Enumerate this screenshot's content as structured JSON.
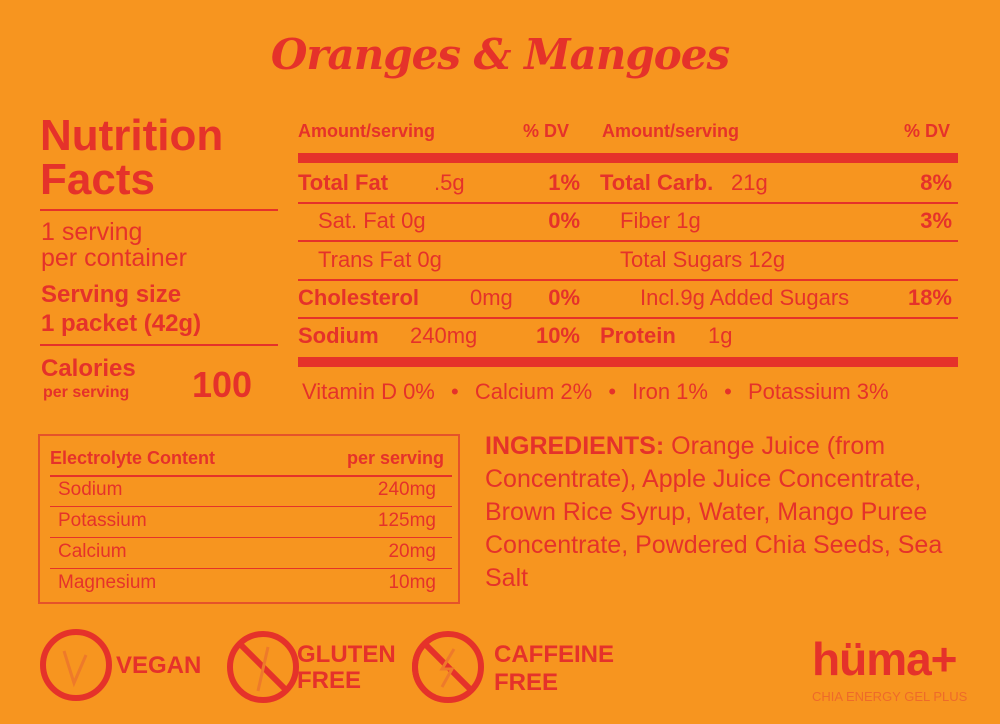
{
  "title": "Oranges & Mangoes",
  "facts": {
    "heading": "Nutrition Facts",
    "servings": "1 serving",
    "servings2": "per container",
    "serving_size_label": "Serving size",
    "serving_size": "1 packet (42g)",
    "calories_label": "Calories",
    "calories_sub": "per serving",
    "calories": "100"
  },
  "table": {
    "hdr_amount": "Amount/serving",
    "hdr_dv": "% DV",
    "left": [
      {
        "name": "Total Fat",
        "amount": ".5g",
        "dv": "1%",
        "bold": true
      },
      {
        "name": "Sat. Fat 0g",
        "amount": "",
        "dv": "0%",
        "bold": false
      },
      {
        "name": "Trans Fat 0g",
        "amount": "",
        "dv": "",
        "bold": false
      },
      {
        "name": "Cholesterol",
        "amount": "0mg",
        "dv": "0%",
        "bold": true
      },
      {
        "name": "Sodium",
        "amount": "240mg",
        "dv": "10%",
        "bold": true
      }
    ],
    "right": [
      {
        "name": "Total Carb.",
        "amount": "21g",
        "dv": "8%",
        "bold": true
      },
      {
        "name": "Fiber 1g",
        "amount": "",
        "dv": "3%",
        "bold": false
      },
      {
        "name": "Total Sugars 12g",
        "amount": "",
        "dv": "",
        "bold": false
      },
      {
        "name": "Incl.9g Added Sugars",
        "amount": "",
        "dv": "18%",
        "bold": false
      },
      {
        "name": "Protein",
        "amount": "1g",
        "dv": "",
        "bold": true
      }
    ],
    "vitamins": [
      "Vitamin D 0%",
      "Calcium 2%",
      "Iron 1%",
      "Potassium 3%"
    ],
    "bullet": "•"
  },
  "electrolytes": {
    "header": "Electrolyte Content",
    "header_right": "per serving",
    "rows": [
      {
        "name": "Sodium",
        "value": "240mg"
      },
      {
        "name": "Potassium",
        "value": "125mg"
      },
      {
        "name": "Calcium",
        "value": "20mg"
      },
      {
        "name": "Magnesium",
        "value": "10mg"
      }
    ]
  },
  "ingredients": {
    "label": "INGREDIENTS:",
    "text": " Orange Juice (from Concentrate), Apple Juice Concentrate, Brown Rice Syrup, Water, Mango Puree Concentrate, Powdered Chia Seeds, Sea Salt"
  },
  "badges": {
    "vegan": "VEGAN",
    "gluten1": "GLUTEN",
    "gluten2": "FREE",
    "caffeine1": "CAFFEINE",
    "caffeine2": "FREE"
  },
  "logo": {
    "name": "hüma+",
    "tagline": "CHIA ENERGY GEL PLUS"
  },
  "colors": {
    "background": "#F7951F",
    "accent": "#E5322A"
  }
}
